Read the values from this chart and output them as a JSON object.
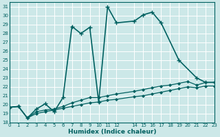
{
  "xlabel": "Humidex (Indice chaleur)",
  "background_color": "#cce8e8",
  "grid_color": "#ffffff",
  "line_color": "#006060",
  "xlim": [
    0,
    23
  ],
  "ylim": [
    18,
    31.5
  ],
  "xtick_vals": [
    0,
    1,
    2,
    3,
    4,
    5,
    6,
    7,
    8,
    9,
    10,
    11,
    12,
    14,
    15,
    16,
    17,
    18,
    19,
    20,
    21,
    22,
    23
  ],
  "xtick_labels": [
    "0",
    "1",
    "2",
    "3",
    "4",
    "5",
    "6",
    "7",
    "8",
    "9",
    "10",
    "11",
    "12",
    "14",
    "15",
    "16",
    "17",
    "18",
    "19",
    "20",
    "21",
    "22",
    "23"
  ],
  "ytick_vals": [
    18,
    19,
    20,
    21,
    22,
    23,
    24,
    25,
    26,
    27,
    28,
    29,
    30,
    31
  ],
  "ytick_labels": [
    "18",
    "19",
    "20",
    "21",
    "22",
    "23",
    "24",
    "25",
    "26",
    "27",
    "28",
    "29",
    "30",
    "31"
  ],
  "series1": {
    "x": [
      0,
      1,
      2,
      3,
      4,
      5,
      6,
      7,
      8,
      9,
      10,
      11,
      12,
      14,
      15,
      16,
      17,
      19,
      21,
      22,
      23
    ],
    "y": [
      19.7,
      19.8,
      18.5,
      19.5,
      20.1,
      19.2,
      20.8,
      28.8,
      28.0,
      28.7,
      20.3,
      31.0,
      29.2,
      29.4,
      30.1,
      30.4,
      29.2,
      25.0,
      23.0,
      22.5,
      22.5
    ],
    "marker": "+",
    "markersize": 4,
    "linewidth": 1.2
  },
  "series2": {
    "x": [
      0,
      1,
      2,
      3,
      4,
      5,
      6,
      7,
      8,
      9,
      10,
      11,
      12,
      14,
      15,
      16,
      17,
      18,
      19,
      20,
      21,
      22,
      23
    ],
    "y": [
      19.7,
      19.8,
      18.5,
      19.2,
      19.4,
      19.5,
      19.8,
      20.2,
      20.5,
      20.8,
      20.8,
      21.0,
      21.2,
      21.5,
      21.7,
      21.9,
      22.1,
      22.2,
      22.4,
      22.6,
      22.2,
      22.5,
      22.5
    ],
    "marker": "D",
    "markersize": 2,
    "linewidth": 0.9
  },
  "series3": {
    "x": [
      0,
      1,
      2,
      3,
      4,
      5,
      6,
      7,
      8,
      9,
      10,
      11,
      12,
      14,
      15,
      16,
      17,
      18,
      19,
      20,
      21,
      22,
      23
    ],
    "y": [
      19.7,
      19.8,
      18.5,
      19.0,
      19.2,
      19.4,
      19.6,
      19.8,
      20.0,
      20.2,
      20.3,
      20.5,
      20.6,
      20.9,
      21.0,
      21.2,
      21.4,
      21.6,
      21.8,
      22.0,
      21.9,
      22.1,
      22.1
    ],
    "marker": "D",
    "markersize": 2,
    "linewidth": 0.9
  }
}
